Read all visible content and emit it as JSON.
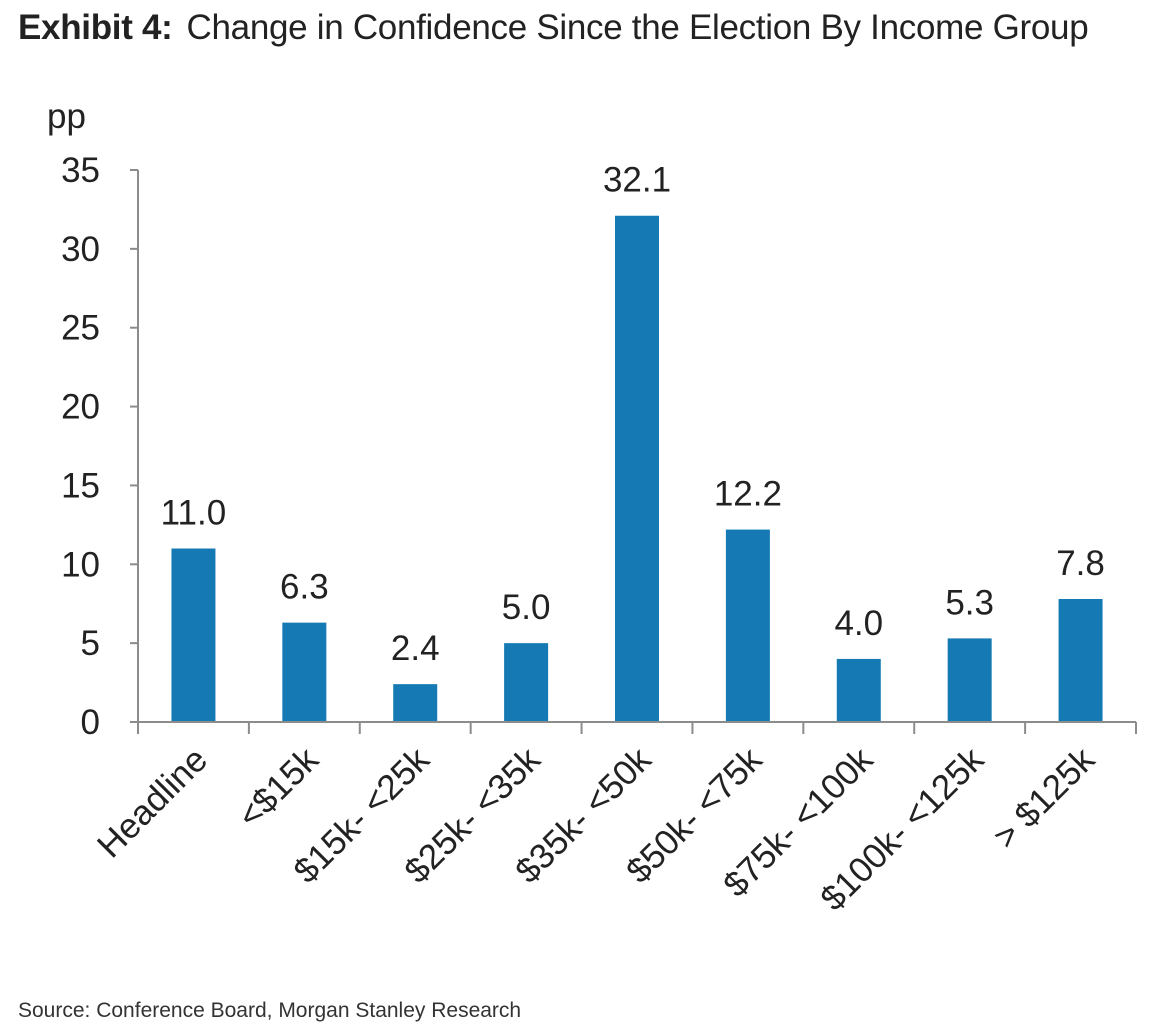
{
  "header": {
    "exhibit_label": "Exhibit 4:",
    "title": "Change in Confidence Since the Election By Income Group"
  },
  "chart_data": {
    "type": "bar",
    "unit_label": "pp",
    "categories": [
      "Headline",
      "<$15k",
      "$15k- <25k",
      "$25k- <35k",
      "$35k- <50k",
      "$50k- <75k",
      "$75k- <100k",
      "$100k- <125k",
      "> $125k"
    ],
    "values": [
      11.0,
      6.3,
      2.4,
      5.0,
      32.1,
      12.2,
      4.0,
      5.3,
      7.8
    ],
    "value_labels": [
      "11.0",
      "6.3",
      "2.4",
      "5.0",
      "32.1",
      "12.2",
      "4.0",
      "5.3",
      "7.8"
    ],
    "ylim": [
      0,
      35
    ],
    "yticks": [
      0,
      5,
      10,
      15,
      20,
      25,
      30,
      35
    ],
    "bar_color": "#157AB4",
    "axis_color": "#8C8C8C",
    "grid": false,
    "legend": false
  },
  "footer": {
    "source": "Source: Conference Board, Morgan Stanley Research"
  }
}
